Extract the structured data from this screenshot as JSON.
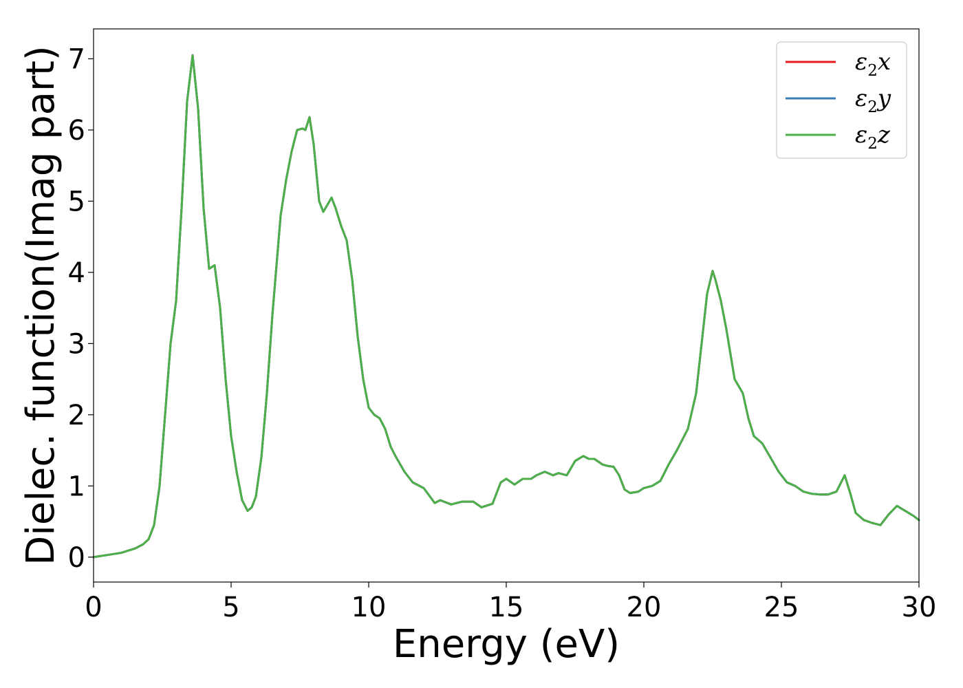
{
  "chart_data": {
    "type": "line",
    "title": "",
    "xlabel": "Energy (eV)",
    "ylabel": "Dielec. function(Imag part)",
    "xlim": [
      0,
      30
    ],
    "ylim": [
      -0.35,
      7.42
    ],
    "xticks": [
      0,
      5,
      10,
      15,
      20,
      25,
      30
    ],
    "yticks": [
      0,
      1,
      2,
      3,
      4,
      5,
      6,
      7
    ],
    "grid": false,
    "legend_position": "top-right",
    "series": [
      {
        "name": "ε2x",
        "legend_base": "ε",
        "legend_sub": "2",
        "legend_suffix": "x",
        "color": "#e41a1c",
        "x": [
          0,
          0.5,
          1.0,
          1.5,
          1.8,
          2.0,
          2.2,
          2.4,
          2.6,
          2.8,
          3.0,
          3.2,
          3.4,
          3.6,
          3.8,
          4.0,
          4.2,
          4.4,
          4.6,
          4.8,
          5.0,
          5.2,
          5.4,
          5.6,
          5.75,
          5.9,
          6.1,
          6.3,
          6.5,
          6.8,
          7.0,
          7.2,
          7.4,
          7.6,
          7.7,
          7.85,
          8.0,
          8.2,
          8.35,
          8.5,
          8.65,
          8.8,
          9.0,
          9.2,
          9.4,
          9.6,
          9.8,
          10.0,
          10.2,
          10.4,
          10.6,
          10.8,
          11.0,
          11.3,
          11.6,
          12.0,
          12.4,
          12.6,
          12.8,
          13.0,
          13.4,
          13.8,
          14.1,
          14.5,
          14.8,
          15.0,
          15.3,
          15.6,
          15.9,
          16.1,
          16.4,
          16.7,
          16.9,
          17.2,
          17.5,
          17.8,
          18.0,
          18.2,
          18.5,
          18.7,
          18.9,
          19.1,
          19.3,
          19.5,
          19.8,
          20.0,
          20.3,
          20.6,
          20.9,
          21.2,
          21.6,
          21.9,
          22.1,
          22.3,
          22.5,
          22.6,
          22.8,
          23.0,
          23.3,
          23.6,
          23.8,
          24.0,
          24.3,
          24.6,
          24.9,
          25.2,
          25.5,
          25.8,
          26.1,
          26.4,
          26.7,
          27.0,
          27.3,
          27.5,
          27.7,
          28.0,
          28.3,
          28.6,
          28.9,
          29.2,
          29.5,
          29.8,
          30.0
        ],
        "y": [
          0.0,
          0.03,
          0.06,
          0.12,
          0.18,
          0.25,
          0.45,
          1.0,
          2.0,
          3.0,
          3.6,
          4.9,
          6.4,
          7.05,
          6.3,
          4.9,
          4.05,
          4.1,
          3.5,
          2.5,
          1.7,
          1.2,
          0.8,
          0.65,
          0.7,
          0.85,
          1.4,
          2.3,
          3.4,
          4.8,
          5.3,
          5.7,
          6.0,
          6.02,
          6.0,
          6.18,
          5.8,
          5.0,
          4.85,
          4.95,
          5.05,
          4.9,
          4.65,
          4.45,
          3.9,
          3.1,
          2.5,
          2.1,
          2.0,
          1.95,
          1.8,
          1.55,
          1.4,
          1.2,
          1.05,
          0.97,
          0.76,
          0.8,
          0.77,
          0.74,
          0.78,
          0.78,
          0.7,
          0.75,
          1.05,
          1.1,
          1.02,
          1.1,
          1.1,
          1.15,
          1.2,
          1.15,
          1.18,
          1.15,
          1.35,
          1.42,
          1.38,
          1.38,
          1.3,
          1.28,
          1.27,
          1.15,
          0.95,
          0.9,
          0.92,
          0.97,
          1.0,
          1.07,
          1.3,
          1.5,
          1.8,
          2.3,
          3.0,
          3.7,
          4.02,
          3.9,
          3.6,
          3.2,
          2.5,
          2.3,
          1.95,
          1.7,
          1.6,
          1.4,
          1.2,
          1.05,
          1.0,
          0.92,
          0.89,
          0.88,
          0.88,
          0.92,
          1.15,
          0.9,
          0.62,
          0.52,
          0.48,
          0.45,
          0.6,
          0.72,
          0.65,
          0.58,
          0.52
        ]
      },
      {
        "name": "ε2y",
        "legend_base": "ε",
        "legend_sub": "2",
        "legend_suffix": "y",
        "color": "#377eb8",
        "x": [
          0,
          0.5,
          1.0,
          1.5,
          1.8,
          2.0,
          2.2,
          2.4,
          2.6,
          2.8,
          3.0,
          3.2,
          3.4,
          3.6,
          3.8,
          4.0,
          4.2,
          4.4,
          4.6,
          4.8,
          5.0,
          5.2,
          5.4,
          5.6,
          5.75,
          5.9,
          6.1,
          6.3,
          6.5,
          6.8,
          7.0,
          7.2,
          7.4,
          7.6,
          7.7,
          7.85,
          8.0,
          8.2,
          8.35,
          8.5,
          8.65,
          8.8,
          9.0,
          9.2,
          9.4,
          9.6,
          9.8,
          10.0,
          10.2,
          10.4,
          10.6,
          10.8,
          11.0,
          11.3,
          11.6,
          12.0,
          12.4,
          12.6,
          12.8,
          13.0,
          13.4,
          13.8,
          14.1,
          14.5,
          14.8,
          15.0,
          15.3,
          15.6,
          15.9,
          16.1,
          16.4,
          16.7,
          16.9,
          17.2,
          17.5,
          17.8,
          18.0,
          18.2,
          18.5,
          18.7,
          18.9,
          19.1,
          19.3,
          19.5,
          19.8,
          20.0,
          20.3,
          20.6,
          20.9,
          21.2,
          21.6,
          21.9,
          22.1,
          22.3,
          22.5,
          22.6,
          22.8,
          23.0,
          23.3,
          23.6,
          23.8,
          24.0,
          24.3,
          24.6,
          24.9,
          25.2,
          25.5,
          25.8,
          26.1,
          26.4,
          26.7,
          27.0,
          27.3,
          27.5,
          27.7,
          28.0,
          28.3,
          28.6,
          28.9,
          29.2,
          29.5,
          29.8,
          30.0
        ],
        "y": [
          0.0,
          0.03,
          0.06,
          0.12,
          0.18,
          0.25,
          0.45,
          1.0,
          2.0,
          3.0,
          3.6,
          4.9,
          6.4,
          7.05,
          6.3,
          4.9,
          4.05,
          4.1,
          3.5,
          2.5,
          1.7,
          1.2,
          0.8,
          0.65,
          0.7,
          0.85,
          1.4,
          2.3,
          3.4,
          4.8,
          5.3,
          5.7,
          6.0,
          6.02,
          6.0,
          6.18,
          5.8,
          5.0,
          4.85,
          4.95,
          5.05,
          4.9,
          4.65,
          4.45,
          3.9,
          3.1,
          2.5,
          2.1,
          2.0,
          1.95,
          1.8,
          1.55,
          1.4,
          1.2,
          1.05,
          0.97,
          0.76,
          0.8,
          0.77,
          0.74,
          0.78,
          0.78,
          0.7,
          0.75,
          1.05,
          1.1,
          1.02,
          1.1,
          1.1,
          1.15,
          1.2,
          1.15,
          1.18,
          1.15,
          1.35,
          1.42,
          1.38,
          1.38,
          1.3,
          1.28,
          1.27,
          1.15,
          0.95,
          0.9,
          0.92,
          0.97,
          1.0,
          1.07,
          1.3,
          1.5,
          1.8,
          2.3,
          3.0,
          3.7,
          4.02,
          3.9,
          3.6,
          3.2,
          2.5,
          2.3,
          1.95,
          1.7,
          1.6,
          1.4,
          1.2,
          1.05,
          1.0,
          0.92,
          0.89,
          0.88,
          0.88,
          0.92,
          1.15,
          0.9,
          0.62,
          0.52,
          0.48,
          0.45,
          0.6,
          0.72,
          0.65,
          0.58,
          0.52
        ]
      },
      {
        "name": "ε2z",
        "legend_base": "ε",
        "legend_sub": "2",
        "legend_suffix": "z",
        "color": "#4daf4a",
        "x": [
          0,
          0.5,
          1.0,
          1.5,
          1.8,
          2.0,
          2.2,
          2.4,
          2.6,
          2.8,
          3.0,
          3.2,
          3.4,
          3.6,
          3.8,
          4.0,
          4.2,
          4.4,
          4.6,
          4.8,
          5.0,
          5.2,
          5.4,
          5.6,
          5.75,
          5.9,
          6.1,
          6.3,
          6.5,
          6.8,
          7.0,
          7.2,
          7.4,
          7.6,
          7.7,
          7.85,
          8.0,
          8.2,
          8.35,
          8.5,
          8.65,
          8.8,
          9.0,
          9.2,
          9.4,
          9.6,
          9.8,
          10.0,
          10.2,
          10.4,
          10.6,
          10.8,
          11.0,
          11.3,
          11.6,
          12.0,
          12.4,
          12.6,
          12.8,
          13.0,
          13.4,
          13.8,
          14.1,
          14.5,
          14.8,
          15.0,
          15.3,
          15.6,
          15.9,
          16.1,
          16.4,
          16.7,
          16.9,
          17.2,
          17.5,
          17.8,
          18.0,
          18.2,
          18.5,
          18.7,
          18.9,
          19.1,
          19.3,
          19.5,
          19.8,
          20.0,
          20.3,
          20.6,
          20.9,
          21.2,
          21.6,
          21.9,
          22.1,
          22.3,
          22.5,
          22.6,
          22.8,
          23.0,
          23.3,
          23.6,
          23.8,
          24.0,
          24.3,
          24.6,
          24.9,
          25.2,
          25.5,
          25.8,
          26.1,
          26.4,
          26.7,
          27.0,
          27.3,
          27.5,
          27.7,
          28.0,
          28.3,
          28.6,
          28.9,
          29.2,
          29.5,
          29.8,
          30.0
        ],
        "y": [
          0.0,
          0.03,
          0.06,
          0.12,
          0.18,
          0.25,
          0.45,
          1.0,
          2.0,
          3.0,
          3.6,
          4.9,
          6.4,
          7.05,
          6.3,
          4.9,
          4.05,
          4.1,
          3.5,
          2.5,
          1.7,
          1.2,
          0.8,
          0.65,
          0.7,
          0.85,
          1.4,
          2.3,
          3.4,
          4.8,
          5.3,
          5.7,
          6.0,
          6.02,
          6.0,
          6.18,
          5.8,
          5.0,
          4.85,
          4.95,
          5.05,
          4.9,
          4.65,
          4.45,
          3.9,
          3.1,
          2.5,
          2.1,
          2.0,
          1.95,
          1.8,
          1.55,
          1.4,
          1.2,
          1.05,
          0.97,
          0.76,
          0.8,
          0.77,
          0.74,
          0.78,
          0.78,
          0.7,
          0.75,
          1.05,
          1.1,
          1.02,
          1.1,
          1.1,
          1.15,
          1.2,
          1.15,
          1.18,
          1.15,
          1.35,
          1.42,
          1.38,
          1.38,
          1.3,
          1.28,
          1.27,
          1.15,
          0.95,
          0.9,
          0.92,
          0.97,
          1.0,
          1.07,
          1.3,
          1.5,
          1.8,
          2.3,
          3.0,
          3.7,
          4.02,
          3.9,
          3.6,
          3.2,
          2.5,
          2.3,
          1.95,
          1.7,
          1.6,
          1.4,
          1.2,
          1.05,
          1.0,
          0.92,
          0.89,
          0.88,
          0.88,
          0.92,
          1.15,
          0.9,
          0.62,
          0.52,
          0.48,
          0.45,
          0.6,
          0.72,
          0.65,
          0.58,
          0.52
        ]
      }
    ]
  }
}
